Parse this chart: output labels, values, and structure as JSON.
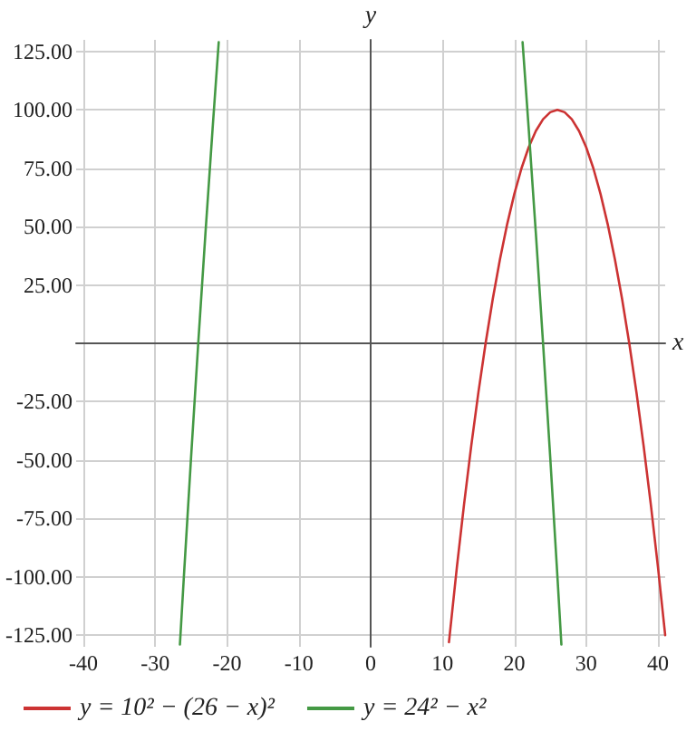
{
  "chart_data": {
    "type": "line",
    "xlabel": "x",
    "ylabel": "y",
    "xlim": [
      -41,
      41
    ],
    "xticks": [
      -40,
      -30,
      -20,
      -10,
      0,
      10,
      20,
      30,
      40
    ],
    "ylim": [
      -130,
      130
    ],
    "yticks": [
      {
        "value": -125,
        "label": "-125.00"
      },
      {
        "value": -100,
        "label": "-100.00"
      },
      {
        "value": -75,
        "label": "-75.00"
      },
      {
        "value": -50,
        "label": "-50.00"
      },
      {
        "value": -25,
        "label": "-25.00"
      },
      {
        "value": 0,
        "label": null
      },
      {
        "value": 25,
        "label": "25.00"
      },
      {
        "value": 50,
        "label": "50.00"
      },
      {
        "value": 75,
        "label": "75.00"
      },
      {
        "value": 100,
        "label": "100.00"
      },
      {
        "value": 125,
        "label": "125.00"
      }
    ],
    "grid": true,
    "legend": "bottom left",
    "marker": "none",
    "line_style": "solid",
    "series": [
      {
        "name": "y = 10² − (26 − x)²",
        "color": "#cc3333",
        "x": [
          10.9,
          12,
          13,
          14,
          15,
          16,
          17,
          18,
          19,
          20,
          21,
          22,
          23,
          24,
          25,
          26,
          27,
          28,
          29,
          30,
          31,
          32,
          33,
          34,
          35,
          36,
          37,
          38,
          39,
          40,
          41
        ],
        "values": [
          -128,
          -96,
          -69,
          -44,
          -21,
          0,
          19,
          36,
          51,
          64,
          75,
          84,
          91,
          96,
          99,
          100,
          99,
          96,
          91,
          84,
          75,
          64,
          51,
          36,
          19,
          0,
          -21,
          -44,
          -69,
          -96,
          -125
        ]
      },
      {
        "name": "y = 24² − x²",
        "color": "#449944",
        "x": [
          -26.55,
          -26,
          -25,
          -24,
          -23,
          -22,
          -21.15,
          null,
          21.15,
          22,
          23,
          24,
          25,
          26,
          26.55
        ],
        "values": [
          -129,
          -100,
          -49,
          0,
          47,
          92,
          129,
          null,
          129,
          92,
          47,
          0,
          -49,
          -100,
          -129
        ]
      }
    ]
  }
}
